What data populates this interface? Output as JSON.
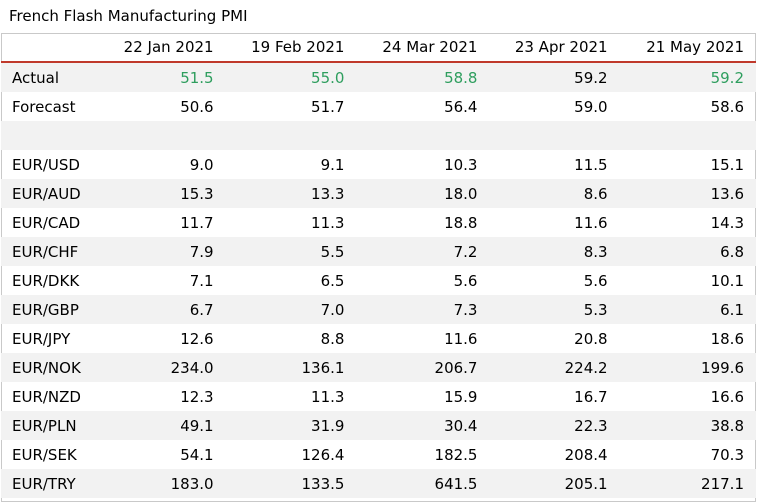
{
  "title": "French Flash Manufacturing PMI",
  "columns": [
    "22 Jan 2021",
    "19 Feb 2021",
    "24 Mar 2021",
    "23 Apr 2021",
    "21 May 2021"
  ],
  "colors": {
    "positive": "#2e9e5e",
    "header_rule": "#c0392b",
    "row_shade": "#f2f2f2"
  },
  "rows": {
    "actual": {
      "label": "Actual",
      "values": [
        "51.5",
        "55.0",
        "58.8",
        "59.2",
        "59.2"
      ]
    },
    "forecast": {
      "label": "Forecast",
      "values": [
        "50.6",
        "51.7",
        "56.4",
        "59.0",
        "58.6"
      ]
    },
    "pairs": [
      {
        "label": "EUR/USD",
        "values": [
          "9.0",
          "9.1",
          "10.3",
          "11.5",
          "15.1"
        ]
      },
      {
        "label": "EUR/AUD",
        "values": [
          "15.3",
          "13.3",
          "18.0",
          "8.6",
          "13.6"
        ]
      },
      {
        "label": "EUR/CAD",
        "values": [
          "11.7",
          "11.3",
          "18.8",
          "11.6",
          "14.3"
        ]
      },
      {
        "label": "EUR/CHF",
        "values": [
          "7.9",
          "5.5",
          "7.2",
          "8.3",
          "6.8"
        ]
      },
      {
        "label": "EUR/DKK",
        "values": [
          "7.1",
          "6.5",
          "5.6",
          "5.6",
          "10.1"
        ]
      },
      {
        "label": "EUR/GBP",
        "values": [
          "6.7",
          "7.0",
          "7.3",
          "5.3",
          "6.1"
        ]
      },
      {
        "label": "EUR/JPY",
        "values": [
          "12.6",
          "8.8",
          "11.6",
          "20.8",
          "18.6"
        ]
      },
      {
        "label": "EUR/NOK",
        "values": [
          "234.0",
          "136.1",
          "206.7",
          "224.2",
          "199.6"
        ]
      },
      {
        "label": "EUR/NZD",
        "values": [
          "12.3",
          "11.3",
          "15.9",
          "16.7",
          "16.6"
        ]
      },
      {
        "label": "EUR/PLN",
        "values": [
          "49.1",
          "31.9",
          "30.4",
          "22.3",
          "38.8"
        ]
      },
      {
        "label": "EUR/SEK",
        "values": [
          "54.1",
          "126.4",
          "182.5",
          "208.4",
          "70.3"
        ]
      },
      {
        "label": "EUR/TRY",
        "values": [
          "183.0",
          "133.5",
          "641.5",
          "205.1",
          "217.1"
        ]
      }
    ]
  }
}
